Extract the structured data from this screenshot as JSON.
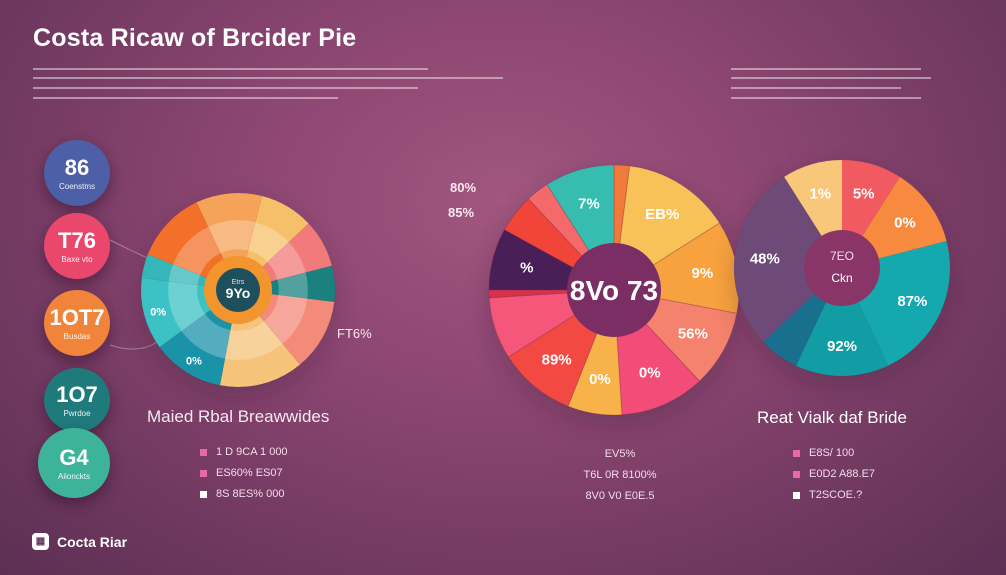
{
  "header": {
    "title": "Costa Ricaw of Brcider Pie"
  },
  "stats": [
    {
      "value": "86",
      "label": "Coenstms",
      "color": "#4d5fa6"
    },
    {
      "value": "T76",
      "label": "Baxe vto",
      "color": "#e9476b"
    },
    {
      "value": "1OT7",
      "label": "Busdas",
      "color": "#ef843a"
    },
    {
      "value": "1O7",
      "label": "Pwrdoe",
      "color": "#1f7b7b"
    },
    {
      "value": "G4",
      "label": "Aiionckts",
      "color": "#3db49a"
    }
  ],
  "chart_data": [
    {
      "type": "pie",
      "variant": "donut",
      "title": "Maied Rbal Breawwides",
      "center_label": {
        "top": "Etrs",
        "main": "9Yo"
      },
      "slices": [
        {
          "value": 9,
          "color": "#f6c06a",
          "label": ""
        },
        {
          "value": 8,
          "color": "#f27a7a",
          "label": ""
        },
        {
          "value": 6,
          "color": "#19827e",
          "label": ""
        },
        {
          "value": 12,
          "color": "#f38a7a",
          "label": ""
        },
        {
          "value": 14,
          "color": "#f6c37a",
          "label": ""
        },
        {
          "value": 12,
          "color": "#1a92a8",
          "label": "0%"
        },
        {
          "value": 12,
          "color": "#3cc1c4",
          "label": "0%"
        },
        {
          "value": 4,
          "color": "#35b6b8",
          "label": ""
        },
        {
          "value": 12,
          "color": "#f2702a",
          "label": ""
        },
        {
          "value": 11,
          "color": "#f6a35a",
          "label": ""
        }
      ],
      "outside_label": "FT6%",
      "legend": [
        "1 D 9CA 1 000",
        "ES60% ES07",
        "8S 8ES% 000"
      ],
      "legend_colors": [
        "#e86aa4",
        "#e86aa4",
        "#ffffff"
      ]
    },
    {
      "type": "pie",
      "title": "",
      "center_label": {
        "main": "8Vo 73"
      },
      "slices": [
        {
          "value": 2,
          "color": "#f07a3a",
          "label": ""
        },
        {
          "value": 14,
          "color": "#f9c258",
          "label": "EB%"
        },
        {
          "value": 12,
          "color": "#f7a23e",
          "label": "9%"
        },
        {
          "value": 10,
          "color": "#f4826c",
          "label": "56%"
        },
        {
          "value": 11,
          "color": "#f24c78",
          "label": "0%"
        },
        {
          "value": 7,
          "color": "#f7b24a",
          "label": "0%"
        },
        {
          "value": 10,
          "color": "#f24a42",
          "label": "89%"
        },
        {
          "value": 8,
          "color": "#f4577a",
          "label": ""
        },
        {
          "value": 1,
          "color": "#d8324a",
          "label": ""
        },
        {
          "value": 8,
          "color": "#4a1f58",
          "label": "%"
        },
        {
          "value": 5,
          "color": "#f2453a",
          "label": ""
        },
        {
          "value": 3,
          "color": "#f46a6a",
          "label": ""
        },
        {
          "value": 9,
          "color": "#36bdb0",
          "label": "7%"
        }
      ],
      "side_labels": [
        "80%",
        "85%"
      ],
      "bottom_text": [
        "EV5%",
        "T6L 0R 8100%",
        "8V0 V0 E0E.5"
      ]
    },
    {
      "type": "pie",
      "title": "Reat Vialk daf Bride",
      "center_label": {
        "top": "7EO",
        "main": "Ckn"
      },
      "slices": [
        {
          "value": 9,
          "color": "#f25a62",
          "label": "5%"
        },
        {
          "value": 12,
          "color": "#f78a3e",
          "label": "0%"
        },
        {
          "value": 22,
          "color": "#15a8ae",
          "label": "87%"
        },
        {
          "value": 14,
          "color": "#129ca4",
          "label": "92%"
        },
        {
          "value": 6,
          "color": "#18708e",
          "label": ""
        },
        {
          "value": 28,
          "color": "#6e4a78",
          "label": "48%"
        },
        {
          "value": 9,
          "color": "#f8c77a",
          "label": "1%"
        }
      ],
      "legend": [
        "E8S/ 100",
        "E0D2 A88.E7",
        "T2SCOE.?"
      ],
      "legend_colors": [
        "#e86aa4",
        "#e86aa4",
        "#ffffff"
      ]
    }
  ],
  "footer": {
    "logo_text": "Cocta Riar"
  }
}
